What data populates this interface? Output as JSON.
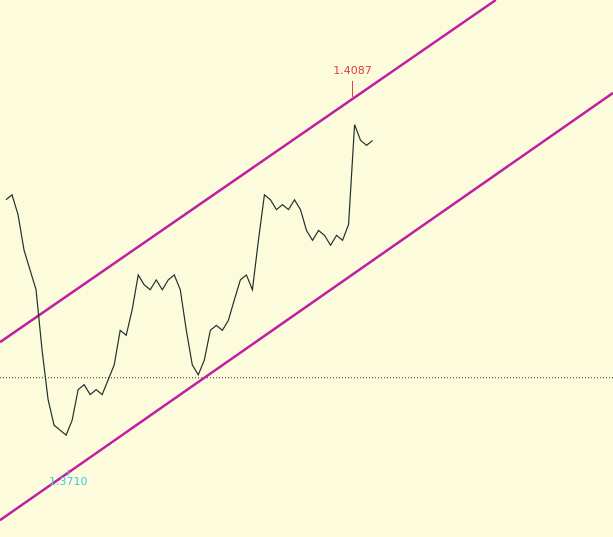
{
  "chart_data": {
    "type": "line",
    "xlim": [
      0,
      204
    ],
    "ylim": [
      1.3642,
      1.4185
    ],
    "background": "#fcfcdc",
    "series": [
      {
        "color": "#203030",
        "x": [
          2,
          4,
          6,
          8,
          10,
          12,
          14,
          16,
          18,
          20,
          22,
          24,
          26,
          28,
          30,
          32,
          34,
          36,
          38,
          40,
          42,
          44,
          46,
          48,
          50,
          52,
          54,
          56,
          58,
          60,
          62,
          64,
          66,
          68,
          70,
          72,
          74,
          76,
          78,
          80,
          82,
          84,
          86,
          88,
          90,
          92,
          94,
          96,
          98,
          100,
          102,
          104,
          106,
          108,
          110,
          112,
          114,
          116,
          118,
          120,
          122,
          124
        ],
        "values": [
          1.3983,
          1.3988,
          1.3968,
          1.3932,
          1.3912,
          1.3892,
          1.3831,
          1.3781,
          1.3755,
          1.375,
          1.3745,
          1.376,
          1.3791,
          1.3796,
          1.3786,
          1.3791,
          1.3786,
          1.3801,
          1.3816,
          1.3851,
          1.3846,
          1.3872,
          1.3907,
          1.3897,
          1.3892,
          1.3902,
          1.3892,
          1.3902,
          1.3907,
          1.3892,
          1.3851,
          1.3816,
          1.3806,
          1.3821,
          1.3851,
          1.3856,
          1.3851,
          1.3861,
          1.3882,
          1.3902,
          1.3907,
          1.3892,
          1.3942,
          1.3988,
          1.3983,
          1.3973,
          1.3978,
          1.3973,
          1.3983,
          1.3973,
          1.3952,
          1.3942,
          1.3952,
          1.3947,
          1.3937,
          1.3947,
          1.3942,
          1.3958,
          1.4059,
          1.4043,
          1.4038,
          1.4043
        ]
      }
    ],
    "channel": [
      {
        "color": "#c020a0",
        "x": [
          0,
          165
        ],
        "values": [
          1.3839,
          1.4185
        ]
      },
      {
        "color": "#c020a0",
        "x": [
          0,
          204
        ],
        "values": [
          1.3659,
          1.4091
        ]
      }
    ],
    "hline": {
      "value": 1.3803,
      "color": "#333333"
    },
    "annotations": [
      {
        "text": "1.4087",
        "x": 117.3,
        "y": 1.4087,
        "color": "#e04040"
      },
      {
        "text": "1.3710",
        "x": 22.7,
        "y": 1.371,
        "color": "#40c8e8"
      }
    ]
  }
}
